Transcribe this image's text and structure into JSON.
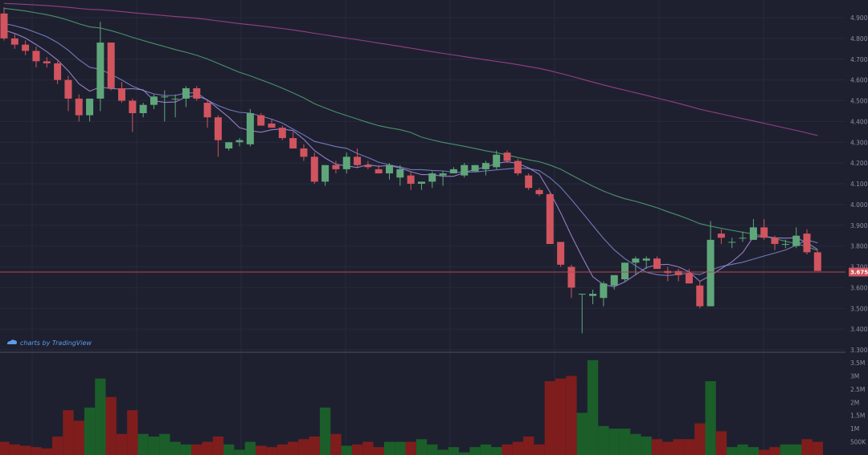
{
  "watermark": "charts by TradingView",
  "last_price_label": "3.6751",
  "colors": {
    "background": "#1e2030",
    "grid": "#262a3a",
    "up": "#5fa77a",
    "down": "#d1545f",
    "vol_up": "#1b5e2a",
    "vol_down": "#7f1d1d",
    "ma_fast": "#a488d8",
    "ma_mid": "#7a84c8",
    "ma_slow": "#4f9e6f",
    "ma_long": "#a4418f",
    "last_line": "#b5484f"
  },
  "icons": {
    "logo": "tradingview-cloud-icon"
  },
  "chart_data": {
    "type": "candlestick",
    "title": "",
    "price_ticks": [
      "4.9000",
      "4.8000",
      "4.7000",
      "4.6000",
      "4.5000",
      "4.4000",
      "4.3000",
      "4.2000",
      "4.1000",
      "4.0000",
      "3.9000",
      "3.8000",
      "3.7000",
      "3.6000",
      "3.5000",
      "3.4000",
      "3.3000"
    ],
    "volume_ticks": [
      "3.5M",
      "3M",
      "2.5M",
      "2M",
      "1.5M",
      "1M",
      "500K"
    ],
    "price_range": [
      3.3,
      4.95
    ],
    "volume_range": [
      0,
      3.7
    ],
    "last_price": 3.6751,
    "ohlc": [
      [
        4.92,
        4.95,
        4.79,
        4.8
      ],
      [
        4.8,
        4.82,
        4.75,
        4.77
      ],
      [
        4.77,
        4.79,
        4.72,
        4.74
      ],
      [
        4.74,
        4.76,
        4.66,
        4.69
      ],
      [
        4.69,
        4.71,
        4.66,
        4.68
      ],
      [
        4.68,
        4.69,
        4.58,
        4.6
      ],
      [
        4.6,
        4.62,
        4.45,
        4.51
      ],
      [
        4.51,
        4.53,
        4.4,
        4.43
      ],
      [
        4.43,
        4.51,
        4.4,
        4.51
      ],
      [
        4.51,
        4.88,
        4.45,
        4.78
      ],
      [
        4.78,
        4.78,
        4.55,
        4.56
      ],
      [
        4.56,
        4.59,
        4.49,
        4.5
      ],
      [
        4.5,
        4.51,
        4.35,
        4.44
      ],
      [
        4.44,
        4.49,
        4.42,
        4.48
      ],
      [
        4.48,
        4.53,
        4.46,
        4.52
      ],
      [
        4.52,
        4.55,
        4.4,
        4.52
      ],
      [
        4.51,
        4.53,
        4.42,
        4.51
      ],
      [
        4.51,
        4.57,
        4.47,
        4.56
      ],
      [
        4.56,
        4.57,
        4.5,
        4.51
      ],
      [
        4.49,
        4.5,
        4.37,
        4.42
      ],
      [
        4.42,
        4.43,
        4.23,
        4.31
      ],
      [
        4.27,
        4.3,
        4.26,
        4.3
      ],
      [
        4.3,
        4.32,
        4.28,
        4.31
      ],
      [
        4.29,
        4.46,
        4.28,
        4.44
      ],
      [
        4.43,
        4.44,
        4.38,
        4.38
      ],
      [
        4.39,
        4.41,
        4.37,
        4.37
      ],
      [
        4.37,
        4.38,
        4.31,
        4.32
      ],
      [
        4.32,
        4.35,
        4.27,
        4.27
      ],
      [
        4.27,
        4.29,
        4.21,
        4.23
      ],
      [
        4.23,
        4.25,
        4.1,
        4.11
      ],
      [
        4.11,
        4.19,
        4.09,
        4.19
      ],
      [
        4.19,
        4.21,
        4.15,
        4.17
      ],
      [
        4.17,
        4.25,
        4.15,
        4.23
      ],
      [
        4.23,
        4.27,
        4.18,
        4.19
      ],
      [
        4.19,
        4.21,
        4.17,
        4.18
      ],
      [
        4.17,
        4.19,
        4.15,
        4.15
      ],
      [
        4.15,
        4.2,
        4.12,
        4.19
      ],
      [
        4.13,
        4.19,
        4.09,
        4.17
      ],
      [
        4.14,
        4.16,
        4.07,
        4.1
      ],
      [
        4.1,
        4.11,
        4.07,
        4.11
      ],
      [
        4.11,
        4.16,
        4.08,
        4.15
      ],
      [
        4.14,
        4.16,
        4.09,
        4.15
      ],
      [
        4.15,
        4.18,
        4.15,
        4.17
      ],
      [
        4.14,
        4.2,
        4.13,
        4.19
      ],
      [
        4.16,
        4.19,
        4.16,
        4.19
      ],
      [
        4.17,
        4.21,
        4.14,
        4.2
      ],
      [
        4.18,
        4.26,
        4.17,
        4.24
      ],
      [
        4.25,
        4.26,
        4.2,
        4.21
      ],
      [
        4.21,
        4.22,
        4.14,
        4.15
      ],
      [
        4.14,
        4.15,
        4.07,
        4.08
      ],
      [
        4.07,
        4.08,
        4.04,
        4.05
      ],
      [
        4.05,
        4.06,
        3.81,
        3.81
      ],
      [
        3.82,
        3.82,
        3.7,
        3.71
      ],
      [
        3.7,
        3.71,
        3.55,
        3.6
      ],
      [
        3.57,
        3.57,
        3.38,
        3.57
      ],
      [
        3.56,
        3.59,
        3.52,
        3.57
      ],
      [
        3.55,
        3.63,
        3.51,
        3.62
      ],
      [
        3.61,
        3.66,
        3.59,
        3.66
      ],
      [
        3.64,
        3.72,
        3.63,
        3.72
      ],
      [
        3.72,
        3.75,
        3.66,
        3.74
      ],
      [
        3.73,
        3.75,
        3.69,
        3.74
      ],
      [
        3.74,
        3.75,
        3.69,
        3.69
      ],
      [
        3.68,
        3.7,
        3.63,
        3.67
      ],
      [
        3.68,
        3.69,
        3.63,
        3.66
      ],
      [
        3.67,
        3.69,
        3.62,
        3.62
      ],
      [
        3.61,
        3.63,
        3.5,
        3.51
      ],
      [
        3.51,
        3.92,
        3.51,
        3.83
      ],
      [
        3.86,
        3.88,
        3.81,
        3.84
      ],
      [
        3.82,
        3.84,
        3.79,
        3.82
      ],
      [
        3.84,
        3.87,
        3.82,
        3.84
      ],
      [
        3.83,
        3.93,
        3.83,
        3.89
      ],
      [
        3.89,
        3.93,
        3.83,
        3.84
      ],
      [
        3.84,
        3.85,
        3.78,
        3.81
      ],
      [
        3.81,
        3.83,
        3.79,
        3.81
      ],
      [
        3.8,
        3.89,
        3.79,
        3.85
      ],
      [
        3.86,
        3.88,
        3.76,
        3.77
      ],
      [
        3.77,
        3.78,
        3.68,
        3.68
      ]
    ],
    "volume": [
      0.5,
      0.4,
      0.35,
      0.3,
      0.25,
      0.7,
      1.7,
      1.3,
      1.8,
      2.9,
      2.2,
      0.8,
      1.7,
      0.8,
      0.7,
      0.8,
      0.5,
      0.4,
      0.4,
      0.5,
      0.7,
      0.4,
      0.2,
      0.5,
      0.35,
      0.3,
      0.4,
      0.5,
      0.6,
      0.7,
      1.8,
      0.8,
      0.35,
      0.4,
      0.5,
      0.3,
      0.5,
      0.5,
      0.5,
      0.6,
      0.4,
      0.2,
      0.3,
      0.1,
      0.3,
      0.4,
      0.3,
      0.4,
      0.5,
      0.7,
      0.4,
      2.8,
      2.9,
      3.0,
      1.6,
      3.6,
      1.1,
      1.0,
      1.0,
      0.8,
      0.7,
      0.6,
      0.5,
      0.6,
      0.6,
      1.2,
      2.8,
      0.9,
      0.3,
      0.4,
      0.3,
      0.2,
      0.3,
      0.4,
      0.4,
      0.6,
      0.5
    ],
    "moving_averages": [
      {
        "color_key": "ma_fast",
        "period": 5
      },
      {
        "color_key": "ma_mid",
        "period": 10
      },
      {
        "color_key": "ma_slow",
        "period": 30
      },
      {
        "color_key": "ma_long",
        "period": 100
      }
    ]
  }
}
